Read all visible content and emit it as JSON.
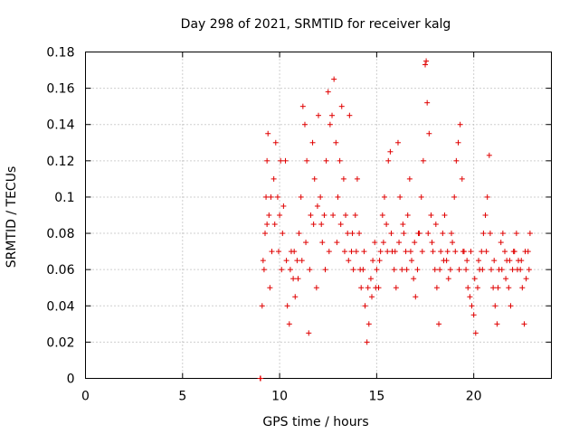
{
  "chart_data": {
    "type": "scatter",
    "title": "Day 298 of 2021, SRMTID for receiver kalg",
    "xlabel": "GPS time / hours",
    "ylabel": "SRMTID / TECUs",
    "xlim": [
      0,
      24
    ],
    "ylim": [
      0,
      0.18
    ],
    "xticks": [
      0,
      5,
      10,
      15,
      20
    ],
    "xtick_labels": [
      "0",
      "5",
      "10",
      "15",
      "20"
    ],
    "yticks": [
      0,
      0.02,
      0.04,
      0.06,
      0.08,
      0.1,
      0.12,
      0.14,
      0.16,
      0.18
    ],
    "ytick_labels": [
      "0",
      "0.02",
      "0.04",
      "0.06",
      "0.08",
      "0.1",
      "0.12",
      "0.14",
      "0.16",
      "0.18"
    ],
    "grid": true,
    "marker": "+",
    "color": "#e00000",
    "series": [
      {
        "name": "SRMTID",
        "points": [
          [
            9.0,
            0.0
          ],
          [
            9.02,
            0.0
          ],
          [
            9.1,
            0.04
          ],
          [
            9.2,
            0.06
          ],
          [
            9.25,
            0.08
          ],
          [
            9.3,
            0.1
          ],
          [
            9.35,
            0.12
          ],
          [
            9.4,
            0.135
          ],
          [
            9.45,
            0.09
          ],
          [
            9.5,
            0.05
          ],
          [
            9.6,
            0.07
          ],
          [
            9.7,
            0.11
          ],
          [
            9.8,
            0.13
          ],
          [
            9.9,
            0.1
          ],
          [
            10.0,
            0.09
          ],
          [
            10.05,
            0.12
          ],
          [
            10.1,
            0.06
          ],
          [
            10.2,
            0.095
          ],
          [
            10.3,
            0.12
          ],
          [
            10.4,
            0.04
          ],
          [
            10.5,
            0.03
          ],
          [
            10.6,
            0.07
          ],
          [
            10.7,
            0.055
          ],
          [
            10.8,
            0.045
          ],
          [
            10.9,
            0.065
          ],
          [
            11.0,
            0.08
          ],
          [
            11.1,
            0.1
          ],
          [
            11.2,
            0.15
          ],
          [
            11.3,
            0.14
          ],
          [
            11.4,
            0.12
          ],
          [
            11.5,
            0.025
          ],
          [
            11.6,
            0.09
          ],
          [
            11.7,
            0.13
          ],
          [
            11.8,
            0.11
          ],
          [
            11.9,
            0.05
          ],
          [
            12.0,
            0.145
          ],
          [
            12.1,
            0.1
          ],
          [
            12.2,
            0.075
          ],
          [
            12.3,
            0.09
          ],
          [
            12.4,
            0.12
          ],
          [
            12.5,
            0.158
          ],
          [
            12.6,
            0.14
          ],
          [
            12.7,
            0.145
          ],
          [
            12.8,
            0.165
          ],
          [
            12.9,
            0.13
          ],
          [
            13.0,
            0.1
          ],
          [
            13.1,
            0.12
          ],
          [
            13.2,
            0.15
          ],
          [
            13.3,
            0.11
          ],
          [
            13.4,
            0.09
          ],
          [
            13.5,
            0.08
          ],
          [
            13.6,
            0.145
          ],
          [
            13.7,
            0.07
          ],
          [
            13.8,
            0.06
          ],
          [
            13.9,
            0.09
          ],
          [
            14.0,
            0.11
          ],
          [
            14.1,
            0.08
          ],
          [
            14.2,
            0.05
          ],
          [
            14.3,
            0.06
          ],
          [
            14.4,
            0.04
          ],
          [
            14.5,
            0.02
          ],
          [
            14.6,
            0.03
          ],
          [
            14.7,
            0.055
          ],
          [
            14.8,
            0.065
          ],
          [
            14.9,
            0.075
          ],
          [
            15.0,
            0.06
          ],
          [
            15.1,
            0.05
          ],
          [
            15.2,
            0.07
          ],
          [
            15.3,
            0.09
          ],
          [
            15.4,
            0.1
          ],
          [
            15.5,
            0.085
          ],
          [
            15.6,
            0.12
          ],
          [
            15.7,
            0.125
          ],
          [
            15.8,
            0.07
          ],
          [
            15.9,
            0.06
          ],
          [
            16.0,
            0.05
          ],
          [
            16.1,
            0.13
          ],
          [
            16.2,
            0.1
          ],
          [
            16.3,
            0.06
          ],
          [
            16.4,
            0.08
          ],
          [
            16.5,
            0.07
          ],
          [
            16.6,
            0.09
          ],
          [
            16.7,
            0.11
          ],
          [
            16.8,
            0.065
          ],
          [
            16.9,
            0.055
          ],
          [
            17.0,
            0.045
          ],
          [
            17.1,
            0.06
          ],
          [
            17.2,
            0.08
          ],
          [
            17.3,
            0.1
          ],
          [
            17.4,
            0.12
          ],
          [
            17.5,
            0.173
          ],
          [
            17.55,
            0.175
          ],
          [
            17.6,
            0.152
          ],
          [
            17.7,
            0.135
          ],
          [
            17.8,
            0.09
          ],
          [
            17.9,
            0.07
          ],
          [
            18.0,
            0.06
          ],
          [
            18.1,
            0.05
          ],
          [
            18.2,
            0.03
          ],
          [
            18.3,
            0.07
          ],
          [
            18.4,
            0.08
          ],
          [
            18.5,
            0.09
          ],
          [
            18.6,
            0.065
          ],
          [
            18.7,
            0.055
          ],
          [
            18.8,
            0.06
          ],
          [
            18.9,
            0.075
          ],
          [
            19.0,
            0.1
          ],
          [
            19.1,
            0.12
          ],
          [
            19.2,
            0.13
          ],
          [
            19.3,
            0.14
          ],
          [
            19.4,
            0.11
          ],
          [
            19.5,
            0.07
          ],
          [
            19.6,
            0.06
          ],
          [
            19.7,
            0.05
          ],
          [
            19.8,
            0.045
          ],
          [
            19.9,
            0.04
          ],
          [
            20.0,
            0.035
          ],
          [
            20.1,
            0.025
          ],
          [
            20.2,
            0.05
          ],
          [
            20.3,
            0.06
          ],
          [
            20.4,
            0.07
          ],
          [
            20.5,
            0.08
          ],
          [
            20.6,
            0.09
          ],
          [
            20.7,
            0.1
          ],
          [
            20.8,
            0.123
          ],
          [
            20.9,
            0.06
          ],
          [
            21.0,
            0.05
          ],
          [
            21.1,
            0.04
          ],
          [
            21.2,
            0.03
          ],
          [
            21.3,
            0.06
          ],
          [
            21.4,
            0.075
          ],
          [
            21.5,
            0.08
          ],
          [
            21.6,
            0.07
          ],
          [
            21.7,
            0.065
          ],
          [
            21.8,
            0.05
          ],
          [
            21.9,
            0.04
          ],
          [
            22.0,
            0.06
          ],
          [
            22.1,
            0.07
          ],
          [
            22.2,
            0.08
          ],
          [
            22.3,
            0.065
          ],
          [
            22.4,
            0.06
          ],
          [
            22.5,
            0.05
          ],
          [
            22.6,
            0.03
          ],
          [
            22.7,
            0.055
          ],
          [
            22.8,
            0.07
          ],
          [
            22.9,
            0.08
          ],
          [
            9.15,
            0.065
          ],
          [
            9.35,
            0.085
          ],
          [
            9.55,
            0.1
          ],
          [
            9.75,
            0.085
          ],
          [
            9.95,
            0.07
          ],
          [
            10.15,
            0.08
          ],
          [
            10.35,
            0.065
          ],
          [
            10.55,
            0.06
          ],
          [
            10.75,
            0.07
          ],
          [
            10.95,
            0.055
          ],
          [
            11.15,
            0.065
          ],
          [
            11.35,
            0.075
          ],
          [
            11.55,
            0.06
          ],
          [
            11.75,
            0.085
          ],
          [
            11.95,
            0.095
          ],
          [
            12.15,
            0.085
          ],
          [
            12.35,
            0.06
          ],
          [
            12.55,
            0.07
          ],
          [
            12.75,
            0.09
          ],
          [
            12.95,
            0.075
          ],
          [
            13.15,
            0.085
          ],
          [
            13.35,
            0.07
          ],
          [
            13.55,
            0.065
          ],
          [
            13.75,
            0.08
          ],
          [
            13.95,
            0.07
          ],
          [
            14.15,
            0.06
          ],
          [
            14.35,
            0.07
          ],
          [
            14.55,
            0.05
          ],
          [
            14.75,
            0.045
          ],
          [
            14.95,
            0.05
          ],
          [
            15.15,
            0.065
          ],
          [
            15.35,
            0.075
          ],
          [
            15.55,
            0.07
          ],
          [
            15.75,
            0.08
          ],
          [
            15.95,
            0.07
          ],
          [
            16.15,
            0.075
          ],
          [
            16.35,
            0.085
          ],
          [
            16.55,
            0.06
          ],
          [
            16.75,
            0.07
          ],
          [
            16.95,
            0.075
          ],
          [
            17.15,
            0.08
          ],
          [
            17.35,
            0.07
          ],
          [
            17.65,
            0.08
          ],
          [
            17.85,
            0.075
          ],
          [
            18.05,
            0.085
          ],
          [
            18.25,
            0.06
          ],
          [
            18.45,
            0.065
          ],
          [
            18.65,
            0.07
          ],
          [
            18.85,
            0.08
          ],
          [
            19.05,
            0.07
          ],
          [
            19.25,
            0.06
          ],
          [
            19.45,
            0.07
          ],
          [
            19.65,
            0.065
          ],
          [
            19.85,
            0.07
          ],
          [
            20.05,
            0.055
          ],
          [
            20.25,
            0.065
          ],
          [
            20.45,
            0.06
          ],
          [
            20.65,
            0.07
          ],
          [
            20.85,
            0.08
          ],
          [
            21.05,
            0.065
          ],
          [
            21.25,
            0.05
          ],
          [
            21.45,
            0.06
          ],
          [
            21.65,
            0.055
          ],
          [
            21.85,
            0.065
          ],
          [
            22.05,
            0.07
          ],
          [
            22.25,
            0.06
          ],
          [
            22.45,
            0.065
          ],
          [
            22.65,
            0.07
          ],
          [
            22.85,
            0.06
          ]
        ]
      }
    ]
  }
}
